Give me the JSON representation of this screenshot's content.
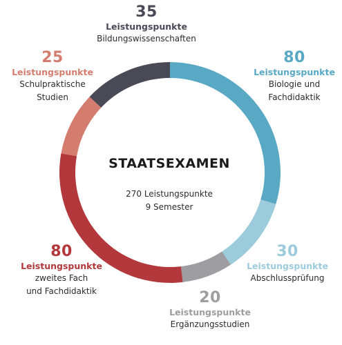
{
  "chart_data": {
    "type": "pie",
    "title": "STAATSEXAMEN",
    "center_lines": [
      "270 Leistungspunkte",
      "9 Semester"
    ],
    "unit_label": "Leistungspunkte",
    "segments": [
      {
        "value": 80,
        "label_lines": [
          "Biologie und",
          "Fachdidaktik"
        ],
        "color": "#5aa9c4"
      },
      {
        "value": 30,
        "label_lines": [
          "Abschlussprüfung"
        ],
        "color": "#9ccbdc"
      },
      {
        "value": 20,
        "label_lines": [
          "Ergänzungsstudien"
        ],
        "color": "#9d9da2"
      },
      {
        "value": 80,
        "label_lines": [
          "zweites Fach",
          "und Fachdidaktik"
        ],
        "color": "#b3383b"
      },
      {
        "value": 25,
        "label_lines": [
          "Schulpraktische",
          "Studien"
        ],
        "color": "#d47c6e"
      },
      {
        "value": 35,
        "label_lines": [
          "Bildungswissenschaften"
        ],
        "color": "#4a4a56"
      }
    ]
  }
}
